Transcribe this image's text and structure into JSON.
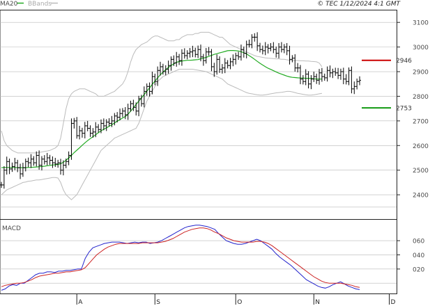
{
  "header": {
    "legend_ma": "MA20",
    "legend_bb": "BBands",
    "stamp": "© TEC 1/12/2024 4:1 GMT"
  },
  "colors": {
    "ma20": "#22aa22",
    "bbands": "#bbbbbb",
    "price": "#000000",
    "macd": "#2222cc",
    "signal": "#cc2222",
    "resistance": "#cc0000",
    "support": "#119911",
    "grid": "#b8b8b8",
    "frame": "#222222"
  },
  "chart_data": [
    {
      "type": "ohlc",
      "name": "price",
      "yticks": [
        2400,
        2500,
        2600,
        2700,
        2800,
        2900,
        3000,
        3100
      ],
      "ylim": [
        2300,
        3150
      ],
      "xticks": [
        "A",
        "S",
        "O",
        "N",
        "D"
      ],
      "xtick_index": [
        28,
        57,
        87,
        116,
        144
      ],
      "close": [
        2440,
        2500,
        2535,
        2505,
        2515,
        2530,
        2510,
        2485,
        2510,
        2535,
        2530,
        2545,
        2530,
        2560,
        2520,
        2545,
        2535,
        2550,
        2540,
        2530,
        2525,
        2530,
        2500,
        2520,
        2535,
        2560,
        2690,
        2700,
        2640,
        2660,
        2650,
        2680,
        2670,
        2650,
        2655,
        2675,
        2665,
        2690,
        2680,
        2695,
        2690,
        2700,
        2720,
        2715,
        2730,
        2740,
        2725,
        2750,
        2770,
        2755,
        2740,
        2790,
        2770,
        2820,
        2840,
        2820,
        2880,
        2860,
        2905,
        2920,
        2900,
        2910,
        2925,
        2950,
        2935,
        2960,
        2945,
        2975,
        2965,
        2975,
        2980,
        2985,
        2970,
        2990,
        2960,
        2945,
        2980,
        2980,
        2920,
        2900,
        2950,
        2910,
        2915,
        2935,
        2925,
        2940,
        2950,
        2965,
        2960,
        2990,
        2975,
        3010,
        3010,
        3040,
        3040,
        3005,
        2990,
        2985,
        3000,
        2995,
        3000,
        2990,
        2975,
        3000,
        2990,
        3000,
        2985,
        2950,
        2955,
        2915,
        2915,
        2870,
        2860,
        2890,
        2850,
        2870,
        2880,
        2865,
        2895,
        2880,
        2875,
        2905,
        2895,
        2900,
        2895,
        2885,
        2900,
        2870,
        2860,
        2905,
        2830,
        2840,
        2860,
        2865
      ],
      "ma20": [
        2510,
        2511,
        2511,
        2511,
        2511,
        2511,
        2510,
        2510,
        2510,
        2510,
        2511,
        2511,
        2512,
        2513,
        2514,
        2515,
        2516,
        2518,
        2519,
        2521,
        2522,
        2523,
        2526,
        2532,
        2540,
        2550,
        2560,
        2571,
        2581,
        2591,
        2601,
        2611,
        2620,
        2628,
        2636,
        2644,
        2652,
        2660,
        2666,
        2672,
        2678,
        2685,
        2692,
        2699,
        2705,
        2712,
        2718,
        2727,
        2740,
        2753,
        2767,
        2780,
        2794,
        2807,
        2821,
        2834,
        2848,
        2862,
        2875,
        2887,
        2898,
        2908,
        2917,
        2925,
        2932,
        2938,
        2941,
        2943,
        2945,
        2946,
        2946,
        2947,
        2948,
        2949,
        2952,
        2955,
        2958,
        2962,
        2966,
        2970,
        2973,
        2976,
        2979,
        2982,
        2985,
        2986,
        2986,
        2985,
        2984,
        2981,
        2977,
        2972,
        2965,
        2958,
        2950,
        2942,
        2934,
        2927,
        2920,
        2914,
        2909,
        2904,
        2899,
        2894,
        2890,
        2886,
        2882,
        2879,
        2877,
        2876,
        2875,
        2874,
        2874,
        2873,
        2873,
        2872,
        2871,
        2870,
        2870,
        2870
      ],
      "bb_upper": [
        2660,
        2620,
        2600,
        2590,
        2580,
        2575,
        2570,
        2570,
        2570,
        2570,
        2570,
        2570,
        2570,
        2570,
        2572,
        2574,
        2576,
        2578,
        2580,
        2585,
        2590,
        2600,
        2630,
        2690,
        2750,
        2790,
        2810,
        2820,
        2825,
        2830,
        2830,
        2830,
        2825,
        2820,
        2815,
        2810,
        2800,
        2800,
        2800,
        2805,
        2810,
        2815,
        2820,
        2830,
        2840,
        2850,
        2870,
        2900,
        2940,
        2970,
        2990,
        3000,
        3010,
        3015,
        3020,
        3030,
        3040,
        3045,
        3045,
        3040,
        3035,
        3030,
        3025,
        3025,
        3025,
        3030,
        3030,
        3040,
        3045,
        3050,
        3050,
        3050,
        3055,
        3055,
        3060,
        3060,
        3060,
        3060,
        3055,
        3050,
        3045,
        3040,
        3040,
        3030,
        3020,
        3010,
        3005,
        3000,
        2995,
        2990,
        2985,
        2980,
        2975,
        2970,
        2965,
        2962,
        2960,
        2958,
        2956,
        2955,
        2954,
        2953,
        2952,
        2952,
        2950,
        2950,
        2948,
        2946,
        2946,
        2945,
        2945,
        2944,
        2944,
        2943,
        2943,
        2942,
        2941,
        2940,
        2935,
        2920
      ],
      "bb_lower": [
        2400,
        2410,
        2420,
        2425,
        2430,
        2435,
        2440,
        2445,
        2450,
        2452,
        2455,
        2456,
        2458,
        2460,
        2460,
        2462,
        2464,
        2466,
        2468,
        2470,
        2470,
        2468,
        2450,
        2420,
        2400,
        2390,
        2380,
        2390,
        2400,
        2420,
        2440,
        2460,
        2480,
        2500,
        2520,
        2540,
        2560,
        2580,
        2590,
        2600,
        2610,
        2620,
        2630,
        2635,
        2640,
        2645,
        2650,
        2655,
        2660,
        2665,
        2670,
        2690,
        2720,
        2750,
        2780,
        2800,
        2820,
        2840,
        2860,
        2870,
        2880,
        2885,
        2890,
        2895,
        2900,
        2905,
        2910,
        2910,
        2910,
        2910,
        2910,
        2910,
        2908,
        2906,
        2904,
        2902,
        2900,
        2895,
        2890,
        2885,
        2880,
        2875,
        2870,
        2860,
        2850,
        2845,
        2840,
        2835,
        2830,
        2825,
        2820,
        2815,
        2812,
        2810,
        2808,
        2806,
        2805,
        2805,
        2806,
        2808,
        2810,
        2812,
        2814,
        2815,
        2816,
        2818,
        2820,
        2820,
        2818,
        2815,
        2812,
        2810,
        2808,
        2806,
        2805,
        2805,
        2806,
        2808,
        2810,
        2812
      ],
      "bb_start": 0,
      "levels": [
        {
          "name": "resistance",
          "value": 2946,
          "label": "2946"
        },
        {
          "name": "support",
          "value": 2753,
          "label": "2753"
        }
      ]
    },
    {
      "type": "line",
      "name": "MACD",
      "title": "MACD",
      "yticks": [
        20,
        40,
        60
      ],
      "ytick_labels": [
        "020",
        "040",
        "060"
      ],
      "ylim": [
        -15,
        90
      ],
      "series": [
        {
          "name": "macd",
          "values": [
            -10,
            -8,
            -4,
            -2,
            -3,
            0,
            0,
            4,
            8,
            12,
            14,
            14,
            16,
            16,
            15,
            17,
            17,
            18,
            18,
            19,
            20,
            20,
            35,
            44,
            50,
            52,
            54,
            56,
            57,
            58,
            58,
            58,
            57,
            56,
            57,
            58,
            57,
            58,
            58,
            56,
            57,
            58,
            60,
            63,
            66,
            69,
            72,
            75,
            78,
            80,
            81,
            82,
            82,
            81,
            80,
            78,
            76,
            70,
            65,
            60,
            58,
            56,
            55,
            55,
            56,
            58,
            60,
            62,
            60,
            56,
            52,
            48,
            42,
            37,
            33,
            29,
            25,
            20,
            15,
            10,
            5,
            2,
            -1,
            -4,
            -6,
            -7,
            -5,
            -2,
            0,
            2,
            -1,
            -4,
            -6,
            -8,
            -9
          ]
        },
        {
          "name": "signal",
          "values": [
            -5,
            -3,
            -2,
            -1,
            0,
            0,
            1,
            3,
            5,
            8,
            10,
            11,
            12,
            13,
            14,
            14,
            15,
            16,
            16,
            17,
            18,
            19,
            22,
            28,
            34,
            40,
            44,
            48,
            51,
            53,
            55,
            56,
            56,
            56,
            56,
            56,
            56,
            57,
            57,
            57,
            57,
            57,
            58,
            59,
            61,
            63,
            66,
            69,
            72,
            74,
            76,
            77,
            78,
            78,
            77,
            75,
            72,
            70,
            67,
            64,
            62,
            60,
            59,
            58,
            58,
            58,
            58,
            59,
            59,
            58,
            56,
            53,
            49,
            45,
            41,
            37,
            33,
            29,
            25,
            21,
            17,
            13,
            9,
            6,
            3,
            1,
            0,
            0,
            0,
            0,
            -1,
            -2,
            -3,
            -5,
            -6
          ]
        }
      ],
      "xlim": [
        0,
        94
      ]
    }
  ]
}
